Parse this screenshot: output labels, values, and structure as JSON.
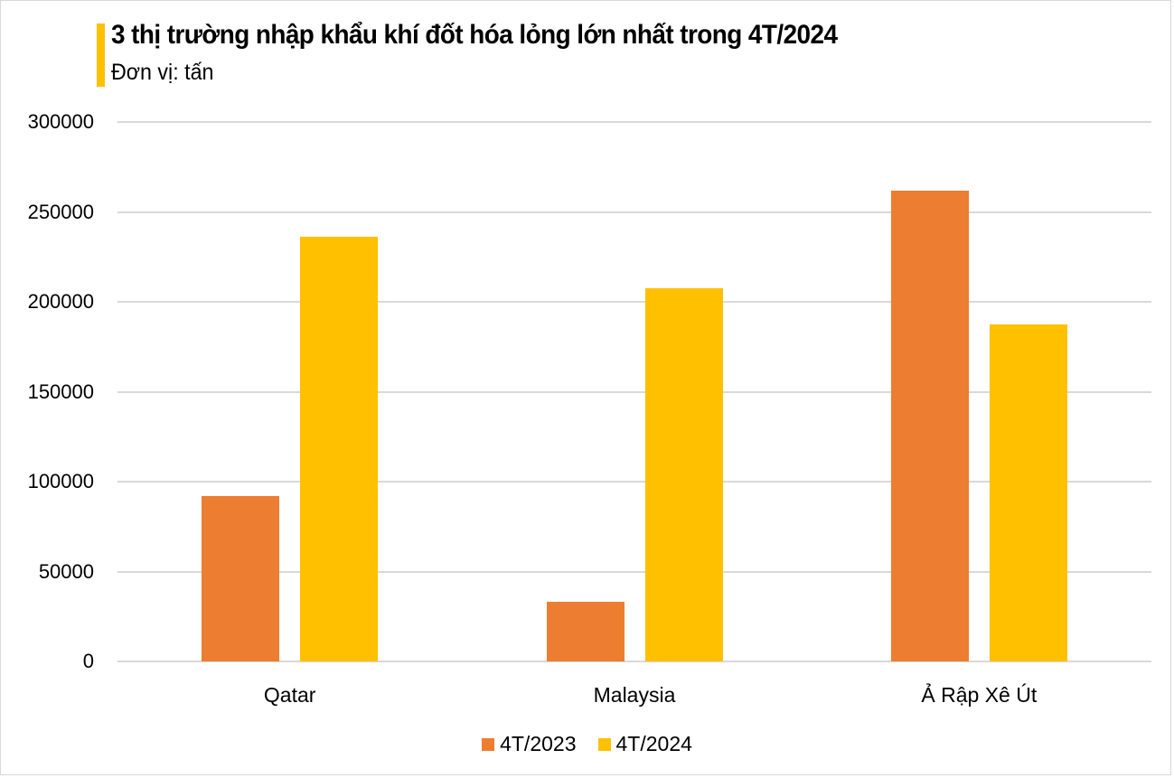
{
  "title": "3 thị trường nhập khẩu khí đốt hóa lỏng lớn nhất trong 4T/2024",
  "subtitle": "Đơn vị: tấn",
  "colors": {
    "accent": "#ffc000",
    "series_2023": "#ed7d31",
    "series_2024": "#ffc000",
    "grid": "#d9d9d9"
  },
  "y_axis": {
    "ticks": [
      "300000",
      "250000",
      "200000",
      "150000",
      "100000",
      "50000",
      "0"
    ]
  },
  "x_axis": {
    "categories": [
      "Qatar",
      "Malaysia",
      "Ả Rập Xê Út"
    ]
  },
  "legend": {
    "items": [
      {
        "label": "4T/2023",
        "color": "#ed7d31"
      },
      {
        "label": "4T/2024",
        "color": "#ffc000"
      }
    ]
  },
  "chart_data": {
    "type": "bar",
    "title": "3 thị trường nhập khẩu khí đốt hóa lỏng lớn nhất trong 4T/2024",
    "subtitle": "Đơn vị: tấn",
    "categories": [
      "Qatar",
      "Malaysia",
      "Ả Rập Xê Út"
    ],
    "series": [
      {
        "name": "4T/2023",
        "color": "#ed7d31",
        "values": [
          92000,
          33000,
          262000
        ]
      },
      {
        "name": "4T/2024",
        "color": "#ffc000",
        "values": [
          236000,
          207500,
          187500
        ]
      }
    ],
    "xlabel": "",
    "ylabel": "",
    "ylim": [
      0,
      300000
    ],
    "yticks": [
      0,
      50000,
      100000,
      150000,
      200000,
      250000,
      300000
    ],
    "grid": true,
    "legend_position": "bottom"
  }
}
